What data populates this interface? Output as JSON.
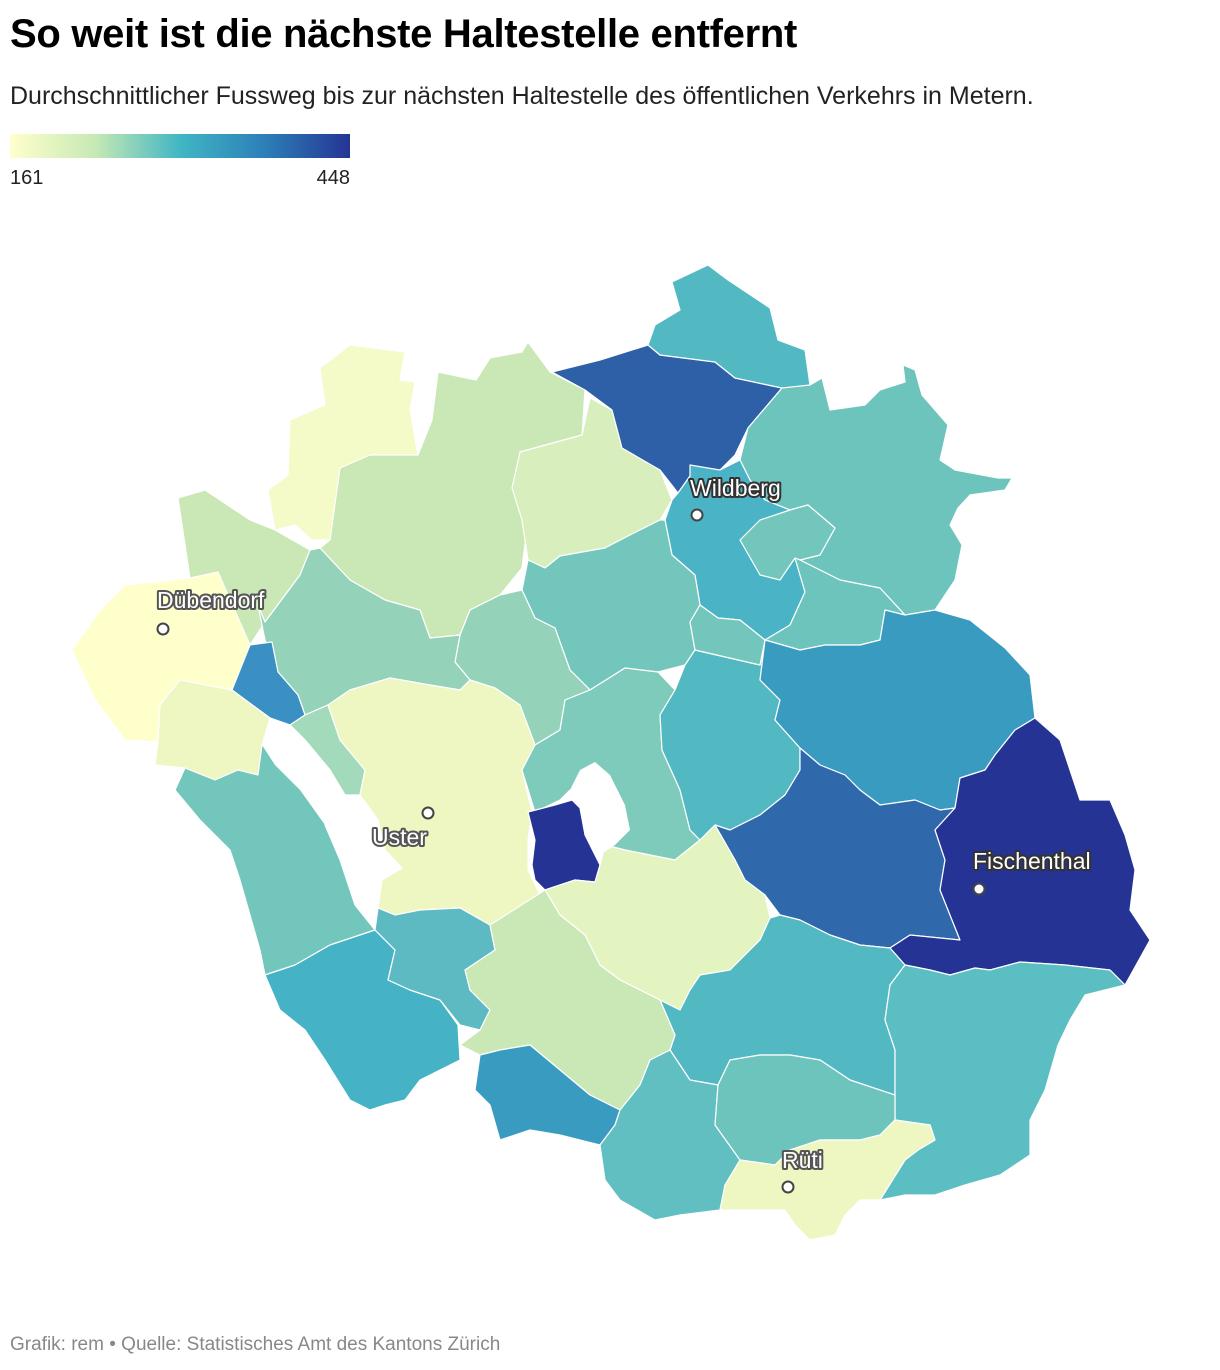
{
  "title": "So weit ist die nächste Haltestelle entfernt",
  "subtitle": "Durchschnittlicher Fussweg bis zur nächsten Haltestelle des öffentlichen Verkehrs in Metern.",
  "legend": {
    "min_label": "161",
    "max_label": "448",
    "min": 161,
    "max": 448,
    "colors": [
      "#ffffcc",
      "#c7e9b4",
      "#41b6c4",
      "#2c7fb8",
      "#253494"
    ]
  },
  "cities": [
    {
      "name": "Dübendorf"
    },
    {
      "name": "Wildberg"
    },
    {
      "name": "Uster"
    },
    {
      "name": "Fischenthal"
    },
    {
      "name": "Rüti"
    }
  ],
  "colors": {
    "very_light": "#ffffcc",
    "light": "#eef7c2",
    "light_green": "#c9e8b6",
    "mint": "#94d3b9",
    "teal_light": "#73c6bb",
    "teal": "#52b9c3",
    "blue_teal": "#3b9fc2",
    "blue": "#2e60a8",
    "dark_blue": "#253494"
  },
  "footer": "Grafik: rem • Quelle: Statistisches Amt des Kantons Zürich"
}
